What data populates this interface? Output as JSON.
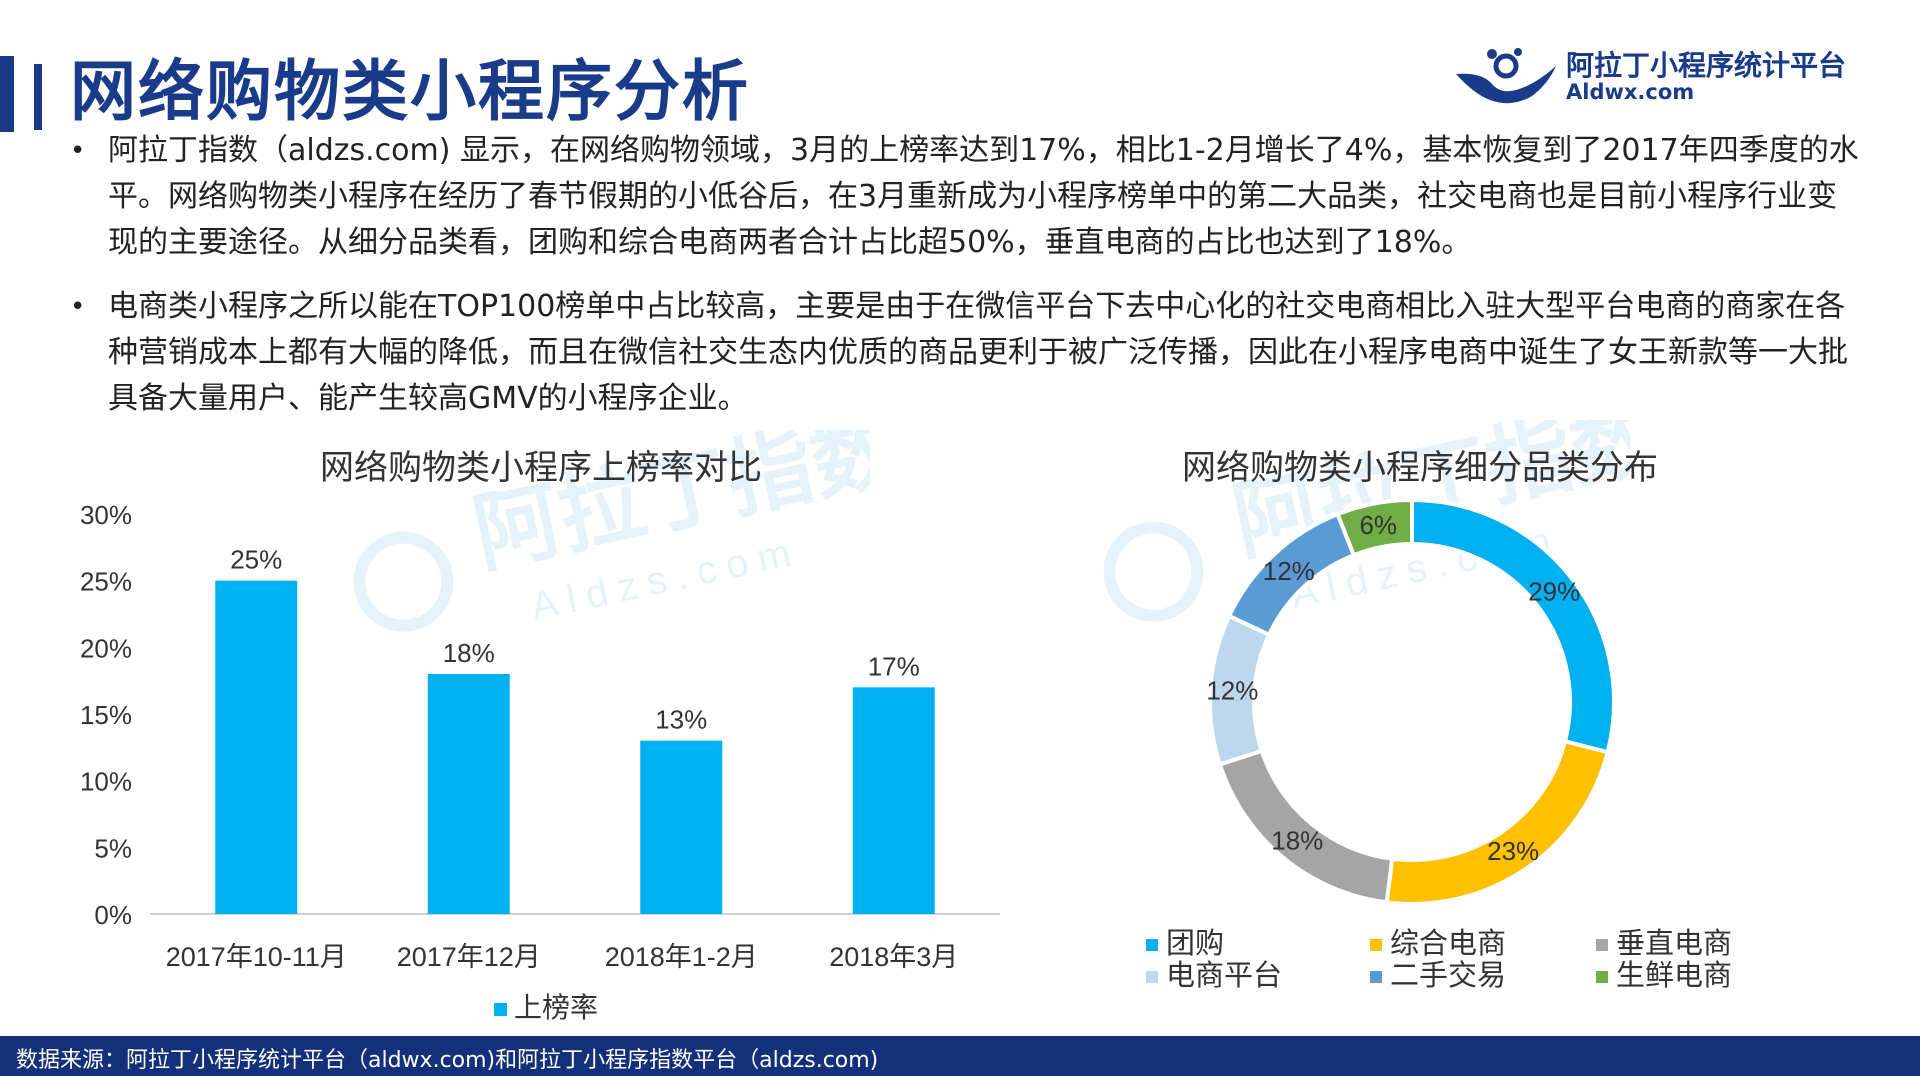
{
  "page_title": "网络购物类小程序分析",
  "brand": {
    "name": "阿拉丁小程序统计平台",
    "url": "Aldwx.com"
  },
  "bullets": [
    "阿拉丁指数（aldzs.com) 显示，在网络购物领域，3月的上榜率达到17%，相比1-2月增长了4%，基本恢复到了2017年四季度的水平。网络购物类小程序在经历了春节假期的小低谷后，在3月重新成为小程序榜单中的第二大品类，社交电商也是目前小程序行业变现的主要途径。从细分品类看，团购和综合电商两者合计占比超50%，垂直电商的占比也达到了18%。",
    "电商类小程序之所以能在TOP100榜单中占比较高，主要是由于在微信平台下去中心化的社交电商相比入驻大型平台电商的商家在各种营销成本上都有大幅的降低，而且在微信社交生态内优质的商品更利于被广泛传播，因此在小程序电商中诞生了女王新款等一大批具备大量用户、能产生较高GMV的小程序企业。"
  ],
  "watermark": {
    "cn": "阿拉丁指数",
    "en": "Aldzs.com"
  },
  "footer": "数据来源：阿拉丁小程序统计平台（aldwx.com)和阿拉丁小程序指数平台（aldzs.com)",
  "chart_data": [
    {
      "type": "bar",
      "title": "网络购物类小程序上榜率对比",
      "categories": [
        "2017年10-11月",
        "2017年12月",
        "2018年1-2月",
        "2018年3月"
      ],
      "series": [
        {
          "name": "上榜率",
          "values": [
            25,
            18,
            13,
            17
          ],
          "color": "#00b0f0"
        }
      ],
      "value_labels": [
        "25%",
        "18%",
        "13%",
        "17%"
      ],
      "y_ticks": [
        "0%",
        "5%",
        "10%",
        "15%",
        "20%",
        "25%",
        "30%"
      ],
      "ylim": [
        0,
        30
      ],
      "grid": false,
      "legend_position": "bottom"
    },
    {
      "type": "pie",
      "style": "donut",
      "title": "网络购物类小程序细分品类分布",
      "slices": [
        {
          "name": "团购",
          "value": 29,
          "label": "29%",
          "color": "#00b0f0"
        },
        {
          "name": "综合电商",
          "value": 23,
          "label": "23%",
          "color": "#ffc000"
        },
        {
          "name": "垂直电商",
          "value": 18,
          "label": "18%",
          "color": "#a5a5a5"
        },
        {
          "name": "电商平台",
          "value": 12,
          "label": "12%",
          "color": "#bdd7ee"
        },
        {
          "name": "二手交易",
          "value": 12,
          "label": "12%",
          "color": "#5b9bd5"
        },
        {
          "name": "生鲜电商",
          "value": 6,
          "label": "6%",
          "color": "#70ad47"
        }
      ],
      "legend_position": "bottom"
    }
  ]
}
